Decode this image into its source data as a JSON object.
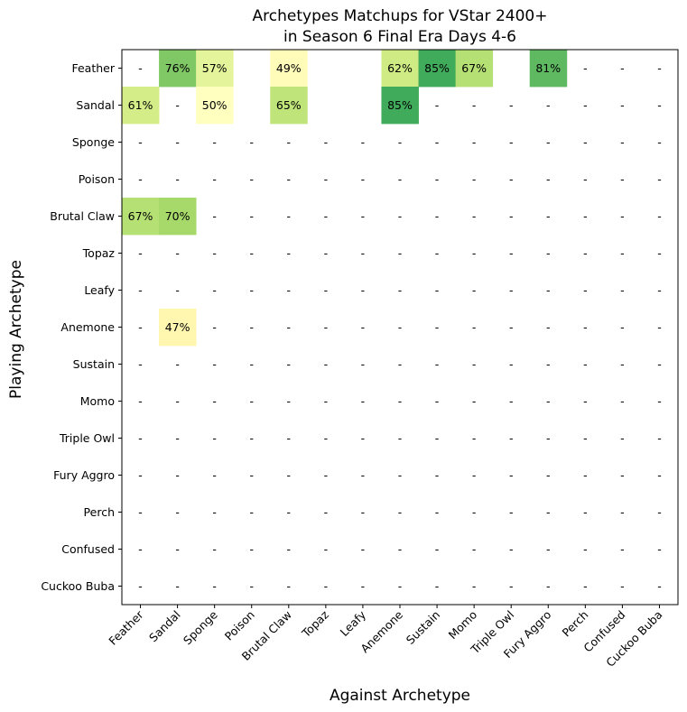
{
  "chart_data": {
    "type": "heatmap",
    "title_lines": [
      "Archetypes Matchups for VStar 2400+",
      "in Season 6 Final Era Days 4-6"
    ],
    "xlabel": "Against Archetype",
    "ylabel": "Playing Archetype",
    "x_categories": [
      "Feather",
      "Sandal",
      "Sponge",
      "Poison",
      "Brutal Claw",
      "Topaz",
      "Leafy",
      "Anemone",
      "Sustain",
      "Momo",
      "Triple Owl",
      "Fury Aggro",
      "Perch",
      "Confused",
      "Cuckoo Buba"
    ],
    "y_categories": [
      "Feather",
      "Sandal",
      "Sponge",
      "Poison",
      "Brutal Claw",
      "Topaz",
      "Leafy",
      "Anemone",
      "Sustain",
      "Momo",
      "Triple Owl",
      "Fury Aggro",
      "Perch",
      "Confused",
      "Cuckoo Buba"
    ],
    "empty_marker": "-",
    "blank_cells": [
      [
        0,
        3
      ],
      [
        0,
        5
      ],
      [
        0,
        6
      ],
      [
        0,
        10
      ],
      [
        1,
        3
      ],
      [
        1,
        5
      ],
      [
        1,
        6
      ]
    ],
    "values": [
      [
        null,
        76,
        57,
        null,
        49,
        null,
        null,
        62,
        85,
        67,
        null,
        81,
        null,
        null,
        null
      ],
      [
        61,
        null,
        50,
        null,
        65,
        null,
        null,
        85,
        null,
        null,
        null,
        null,
        null,
        null,
        null
      ],
      [
        null,
        null,
        null,
        null,
        null,
        null,
        null,
        null,
        null,
        null,
        null,
        null,
        null,
        null,
        null
      ],
      [
        null,
        null,
        null,
        null,
        null,
        null,
        null,
        null,
        null,
        null,
        null,
        null,
        null,
        null,
        null
      ],
      [
        67,
        70,
        null,
        null,
        null,
        null,
        null,
        null,
        null,
        null,
        null,
        null,
        null,
        null,
        null
      ],
      [
        null,
        null,
        null,
        null,
        null,
        null,
        null,
        null,
        null,
        null,
        null,
        null,
        null,
        null,
        null
      ],
      [
        null,
        null,
        null,
        null,
        null,
        null,
        null,
        null,
        null,
        null,
        null,
        null,
        null,
        null,
        null
      ],
      [
        null,
        47,
        null,
        null,
        null,
        null,
        null,
        null,
        null,
        null,
        null,
        null,
        null,
        null,
        null
      ],
      [
        null,
        null,
        null,
        null,
        null,
        null,
        null,
        null,
        null,
        null,
        null,
        null,
        null,
        null,
        null
      ],
      [
        null,
        null,
        null,
        null,
        null,
        null,
        null,
        null,
        null,
        null,
        null,
        null,
        null,
        null,
        null
      ],
      [
        null,
        null,
        null,
        null,
        null,
        null,
        null,
        null,
        null,
        null,
        null,
        null,
        null,
        null,
        null
      ],
      [
        null,
        null,
        null,
        null,
        null,
        null,
        null,
        null,
        null,
        null,
        null,
        null,
        null,
        null,
        null
      ],
      [
        null,
        null,
        null,
        null,
        null,
        null,
        null,
        null,
        null,
        null,
        null,
        null,
        null,
        null,
        null
      ],
      [
        null,
        null,
        null,
        null,
        null,
        null,
        null,
        null,
        null,
        null,
        null,
        null,
        null,
        null,
        null
      ],
      [
        null,
        null,
        null,
        null,
        null,
        null,
        null,
        null,
        null,
        null,
        null,
        null,
        null,
        null,
        null
      ]
    ],
    "value_suffix": "%",
    "colormap": "RdYlGn",
    "color_range": [
      0,
      100
    ],
    "grid": false
  }
}
